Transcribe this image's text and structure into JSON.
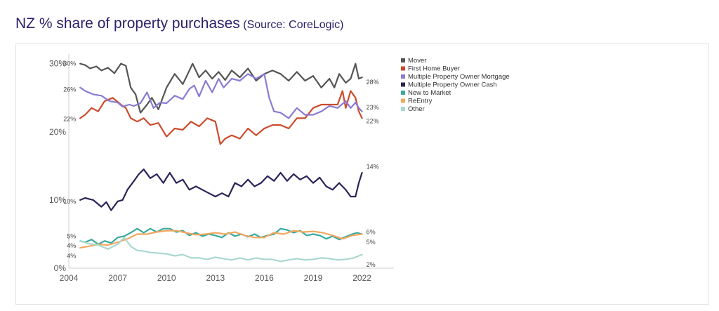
{
  "header": {
    "title": "NZ % share of property purchases",
    "subtitle": "(Source: CoreLogic)"
  },
  "chart_data": {
    "type": "line",
    "ylim": [
      0,
      31
    ],
    "xlim": [
      2004.7,
      2022.4
    ],
    "yticks": [
      {
        "value": 30,
        "label": "30%"
      },
      {
        "value": 20,
        "label": "20%"
      },
      {
        "value": 10,
        "label": "10%"
      },
      {
        "value": 0,
        "label": "0%"
      }
    ],
    "xticks": [
      {
        "value": 2004,
        "label": "2004"
      },
      {
        "value": 2007,
        "label": "2007"
      },
      {
        "value": 2010,
        "label": "2010"
      },
      {
        "value": 2013,
        "label": "2013"
      },
      {
        "value": 2016,
        "label": "2016"
      },
      {
        "value": 2019,
        "label": "2019"
      },
      {
        "value": 2022,
        "label": "2022"
      }
    ],
    "grid": false,
    "legend": "top-right",
    "series": [
      {
        "name": "Mover",
        "color": "#555555",
        "x": [
          2004.7,
          2005.0,
          2005.3,
          2005.7,
          2006.0,
          2006.4,
          2006.8,
          2007.2,
          2007.5,
          2007.8,
          2008.1,
          2008.4,
          2008.8,
          2009.1,
          2009.5,
          2010.0,
          2010.5,
          2011.0,
          2011.3,
          2011.6,
          2012.0,
          2012.4,
          2012.8,
          2013.2,
          2013.6,
          2014.0,
          2014.5,
          2015.0,
          2015.5,
          2016.0,
          2016.5,
          2017.0,
          2017.5,
          2018.0,
          2018.5,
          2019.0,
          2019.5,
          2020.0,
          2020.3,
          2020.6,
          2021.0,
          2021.3,
          2021.6,
          2021.8,
          2022.0
        ],
        "values": [
          30,
          29.8,
          29.3,
          29.6,
          29,
          29.4,
          28.6,
          30,
          29.7,
          26.5,
          25.5,
          22.8,
          24,
          25,
          23.3,
          26.5,
          28.5,
          27,
          28.5,
          30,
          28,
          29,
          27.8,
          28.8,
          27.6,
          29,
          28,
          29.3,
          27.5,
          28.5,
          29,
          28.5,
          27.5,
          28.8,
          27.5,
          28.2,
          26.5,
          27.8,
          26.5,
          28.5,
          27.2,
          27.8,
          30,
          27.8,
          28
        ]
      },
      {
        "name": "First Home Buyer",
        "color": "#cc4a2c",
        "x": [
          2004.7,
          2005.0,
          2005.4,
          2005.8,
          2006.2,
          2006.7,
          2007.2,
          2007.5,
          2007.8,
          2008.2,
          2008.6,
          2009.0,
          2009.5,
          2010.0,
          2010.5,
          2011.0,
          2011.5,
          2012.0,
          2012.5,
          2013.0,
          2013.3,
          2013.6,
          2014.0,
          2014.5,
          2015.0,
          2015.5,
          2016.0,
          2016.5,
          2017.0,
          2017.5,
          2018.0,
          2018.5,
          2019.0,
          2019.5,
          2020.0,
          2020.5,
          2020.8,
          2021.0,
          2021.3,
          2021.6,
          2021.8,
          2022.0
        ],
        "values": [
          22,
          22.5,
          23.5,
          23,
          24.5,
          25,
          24,
          23.5,
          22,
          21.5,
          22,
          21,
          21.3,
          19.3,
          20.5,
          20.3,
          21.5,
          20.8,
          22,
          21.5,
          18.2,
          19,
          19.5,
          19,
          20.5,
          19.5,
          20.5,
          21,
          21,
          20.5,
          22,
          22,
          23.5,
          24,
          24,
          24,
          26,
          23.5,
          26,
          25,
          23,
          22
        ]
      },
      {
        "name": "Multiple Property Owner Mortgage",
        "color": "#8a7bd4",
        "x": [
          2004.7,
          2005.0,
          2005.5,
          2006.0,
          2006.5,
          2007.0,
          2007.3,
          2007.7,
          2008.0,
          2008.4,
          2008.8,
          2009.2,
          2009.6,
          2010.0,
          2010.5,
          2011.0,
          2011.4,
          2011.7,
          2012.0,
          2012.4,
          2012.8,
          2013.2,
          2013.5,
          2014.0,
          2014.5,
          2015.0,
          2015.5,
          2016.0,
          2016.3,
          2016.6,
          2017.0,
          2017.5,
          2018.0,
          2018.5,
          2019.0,
          2019.5,
          2020.0,
          2020.5,
          2021.0,
          2021.3,
          2021.6,
          2021.8,
          2022.0
        ],
        "values": [
          26.5,
          26,
          25.5,
          25.3,
          24.5,
          24.3,
          23.7,
          24,
          23.8,
          24.2,
          25.8,
          23.5,
          24.3,
          24.2,
          25.3,
          24.8,
          26.3,
          26.8,
          25.2,
          27.5,
          25.8,
          27.8,
          26.5,
          27.8,
          27.5,
          28.5,
          27.8,
          28.5,
          25,
          23,
          22.8,
          22,
          23.5,
          22.5,
          22.5,
          23,
          23.8,
          23.5,
          24.5,
          23.5,
          24.3,
          23.5,
          23
        ]
      },
      {
        "name": "Multiple Property Owner Cash",
        "color": "#2a2458",
        "x": [
          2004.7,
          2005.0,
          2005.5,
          2006.0,
          2006.3,
          2006.6,
          2007.0,
          2007.3,
          2007.6,
          2008.0,
          2008.3,
          2008.6,
          2009.0,
          2009.4,
          2009.8,
          2010.2,
          2010.6,
          2011.0,
          2011.4,
          2011.8,
          2012.2,
          2012.6,
          2013.0,
          2013.4,
          2013.8,
          2014.2,
          2014.6,
          2015.0,
          2015.4,
          2015.8,
          2016.2,
          2016.6,
          2017.0,
          2017.4,
          2017.8,
          2018.2,
          2018.6,
          2019.0,
          2019.4,
          2019.8,
          2020.2,
          2020.6,
          2021.0,
          2021.3,
          2021.6,
          2021.8,
          2022.0
        ],
        "values": [
          10,
          10.3,
          10,
          9,
          9.7,
          8.5,
          9.8,
          10,
          11.5,
          12.8,
          13.8,
          14.5,
          13.2,
          13.8,
          12.5,
          14,
          12.5,
          13,
          11.5,
          12,
          11.5,
          11,
          10.5,
          11,
          10.5,
          12.5,
          12,
          13,
          12,
          12.5,
          13.5,
          12.8,
          14,
          12.8,
          13.8,
          13,
          13.5,
          12.5,
          13.3,
          12,
          11.5,
          12.5,
          11.5,
          10.5,
          10.5,
          12.5,
          14
        ]
      },
      {
        "name": "New to Market",
        "color": "#3aa99f",
        "x": [
          2004.7,
          2005.0,
          2005.4,
          2005.8,
          2006.2,
          2006.6,
          2007.0,
          2007.4,
          2007.8,
          2008.2,
          2008.6,
          2009.0,
          2009.4,
          2009.8,
          2010.2,
          2010.6,
          2011.0,
          2011.4,
          2011.8,
          2012.2,
          2012.6,
          2013.0,
          2013.4,
          2013.8,
          2014.2,
          2014.6,
          2015.0,
          2015.4,
          2015.8,
          2016.2,
          2016.6,
          2017.0,
          2017.4,
          2017.8,
          2018.2,
          2018.6,
          2019.0,
          2019.4,
          2019.8,
          2020.2,
          2020.6,
          2021.0,
          2021.4,
          2021.7,
          2022.0
        ],
        "values": [
          4,
          3.8,
          4.2,
          3.5,
          4,
          3.7,
          4.5,
          4.7,
          5.2,
          5.8,
          5.2,
          5.8,
          5.3,
          5.8,
          5.8,
          5.3,
          5.5,
          4.8,
          5.2,
          4.7,
          5,
          4.8,
          4.5,
          5.2,
          4.7,
          5,
          4.6,
          5,
          4.5,
          4.8,
          5,
          5.8,
          5.6,
          5.2,
          5.5,
          4.8,
          5,
          4.8,
          4.3,
          4.7,
          4.2,
          4.6,
          5,
          5.2,
          5
        ]
      },
      {
        "name": "ReEntry",
        "color": "#f0a861",
        "x": [
          2004.7,
          2005.2,
          2005.8,
          2006.4,
          2007.0,
          2007.6,
          2008.2,
          2008.8,
          2009.4,
          2010.0,
          2010.6,
          2011.2,
          2011.8,
          2012.4,
          2013.0,
          2013.6,
          2014.2,
          2014.8,
          2015.4,
          2016.0,
          2016.6,
          2017.2,
          2017.8,
          2018.4,
          2019.0,
          2019.6,
          2020.2,
          2020.8,
          2021.4,
          2022.0
        ],
        "values": [
          3,
          3.2,
          3.5,
          3.4,
          3.8,
          4.3,
          5,
          5,
          5.3,
          5.5,
          5.5,
          5.2,
          4.9,
          5,
          5.2,
          5,
          5.3,
          4.8,
          4.5,
          4.5,
          5.2,
          5,
          5.5,
          5.3,
          5.4,
          5.2,
          4.8,
          4.3,
          4.8,
          5
        ]
      },
      {
        "name": "Other",
        "color": "#a8d8d0",
        "x": [
          2004.7,
          2005.2,
          2005.8,
          2006.4,
          2007.0,
          2007.4,
          2007.8,
          2008.2,
          2008.6,
          2009.0,
          2009.5,
          2010.0,
          2010.5,
          2011.0,
          2011.5,
          2012.0,
          2012.5,
          2013.0,
          2013.5,
          2014.0,
          2014.5,
          2015.0,
          2015.5,
          2016.0,
          2016.5,
          2017.0,
          2017.5,
          2018.0,
          2018.5,
          2019.0,
          2019.5,
          2020.0,
          2020.5,
          2021.0,
          2021.5,
          2022.0
        ],
        "values": [
          4,
          3.6,
          3.4,
          2.8,
          3.5,
          4.5,
          3.2,
          2.6,
          2.5,
          2.3,
          2.2,
          2.1,
          1.8,
          2,
          1.5,
          1.5,
          1.3,
          1.6,
          1.4,
          1.2,
          1.5,
          1.2,
          1.5,
          1.3,
          1.3,
          1,
          1.2,
          1.4,
          1.2,
          1.3,
          1.5,
          1.4,
          1.2,
          1.3,
          1.5,
          2
        ]
      }
    ],
    "annotations": [
      {
        "side": "left",
        "value": 30,
        "label": "30%"
      },
      {
        "side": "left",
        "value": 26.2,
        "label": "26%"
      },
      {
        "side": "left",
        "value": 21.9,
        "label": "22%"
      },
      {
        "side": "left",
        "value": 9.8,
        "label": "10%"
      },
      {
        "side": "left",
        "value": 4.7,
        "label": "5%"
      },
      {
        "side": "left",
        "value": 3.3,
        "label": "4%"
      },
      {
        "side": "left",
        "value": 1.8,
        "label": "4%"
      },
      {
        "side": "right",
        "value": 27.3,
        "label": "28%"
      },
      {
        "side": "right",
        "value": 23.6,
        "label": "23%"
      },
      {
        "side": "right",
        "value": 21.6,
        "label": "22%"
      },
      {
        "side": "right",
        "value": 14.9,
        "label": "14%"
      },
      {
        "side": "right",
        "value": 5.3,
        "label": "6%"
      },
      {
        "side": "right",
        "value": 3.8,
        "label": "5%"
      },
      {
        "side": "right",
        "value": 0.5,
        "label": "2%"
      }
    ]
  }
}
